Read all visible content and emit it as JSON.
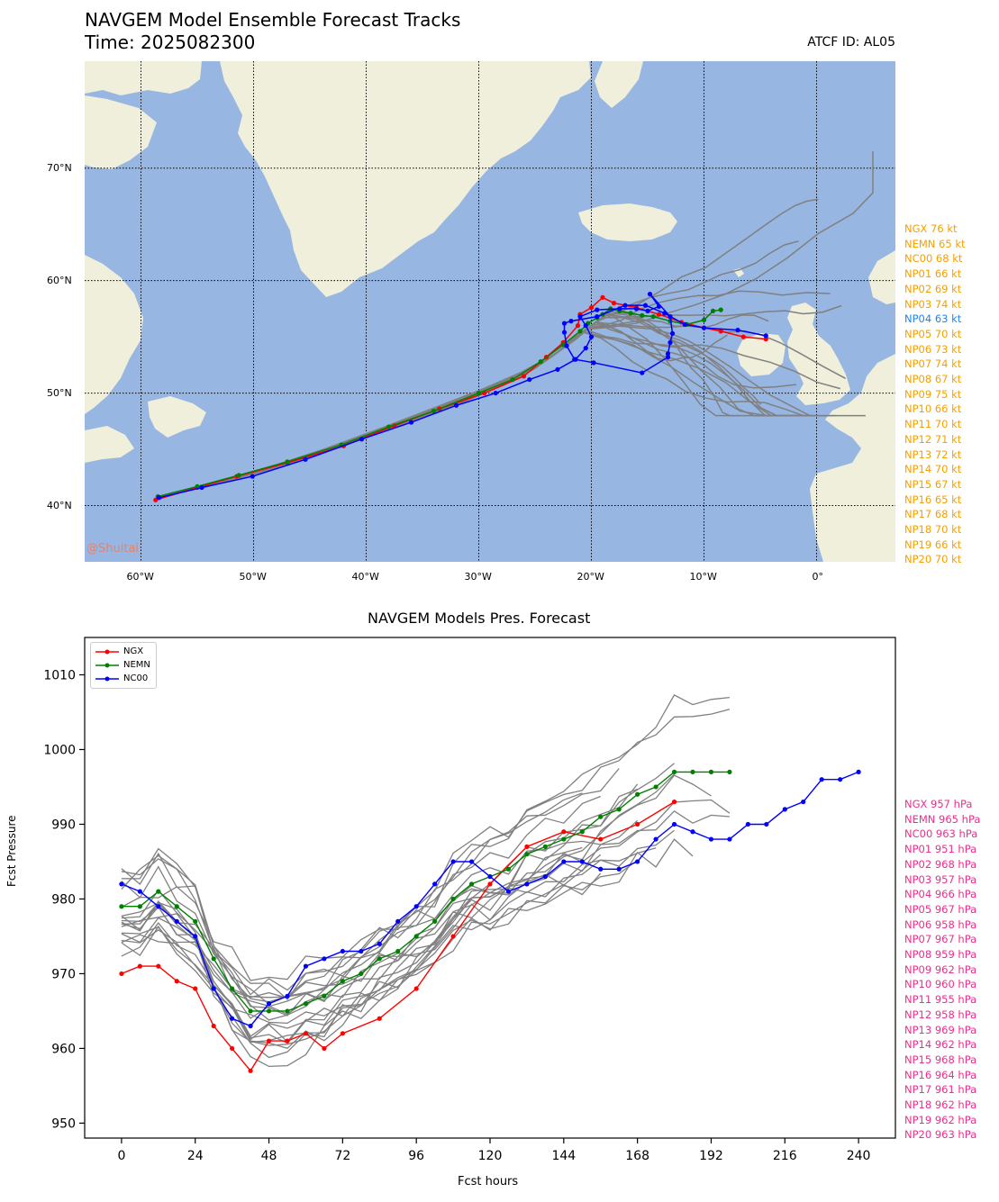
{
  "header": {
    "title": "NAVGEM Model Ensemble Forecast Tracks",
    "time_label": "Time: 2025082300",
    "atcf_label": "ATCF ID: AL05"
  },
  "map": {
    "watermark": "@Shuitai",
    "colors": {
      "ocean": "#97b6e1",
      "land": "#efefdb",
      "grid": "#000000"
    },
    "lon_range": [
      -65,
      7
    ],
    "lat_range": [
      35,
      79.5
    ],
    "lat_ticks": [
      {
        "value": 40,
        "label": "40°N"
      },
      {
        "value": 50,
        "label": "50°N"
      },
      {
        "value": 60,
        "label": "60°N"
      },
      {
        "value": 70,
        "label": "70°N"
      }
    ],
    "lon_ticks": [
      {
        "value": -60,
        "label": "60°W"
      },
      {
        "value": -50,
        "label": "50°W"
      },
      {
        "value": -40,
        "label": "40°W"
      },
      {
        "value": -30,
        "label": "30°W"
      },
      {
        "value": -20,
        "label": "20°W"
      },
      {
        "value": -10,
        "label": "10°W"
      },
      {
        "value": 0,
        "label": "0°"
      }
    ]
  },
  "wind_list": [
    "NGX 76 kt",
    "NEMN 65 kt",
    "NC00 68 kt",
    "NP01 66 kt",
    "NP02 69 kt",
    "NP03 74 kt",
    "NP04 63 kt",
    "NP05 70 kt",
    "NP06 73 kt",
    "NP07 74 kt",
    "NP08 67 kt",
    "NP09 75 kt",
    "NP10 66 kt",
    "NP11 70 kt",
    "NP12 71 kt",
    "NP13 72 kt",
    "NP14 70 kt",
    "NP15 67 kt",
    "NP16 65 kt",
    "NP17 68 kt",
    "NP18 70 kt",
    "NP19 66 kt",
    "NP20 70 kt"
  ],
  "pressure_list": [
    "NGX 957 hPa",
    "NEMN 965 hPa",
    "NC00 963 hPa",
    "NP01 951 hPa",
    "NP02 968 hPa",
    "NP03 957 hPa",
    "NP04 966 hPa",
    "NP05 967 hPa",
    "NP06 958 hPa",
    "NP07 967 hPa",
    "NP08 959 hPa",
    "NP09 962 hPa",
    "NP10 960 hPa",
    "NP11 955 hPa",
    "NP12 958 hPa",
    "NP13 969 hPa",
    "NP14 962 hPa",
    "NP15 968 hPa",
    "NP16 964 hPa",
    "NP17 961 hPa",
    "NP18 962 hPa",
    "NP19 962 hPa",
    "NP20 963 hPa"
  ],
  "chart_data": [
    {
      "type": "line",
      "title": "NAVGEM Model Ensemble Forecast Tracks",
      "xlabel": "",
      "ylabel": "",
      "xlim": [
        -65,
        7
      ],
      "ylim": [
        35,
        79.5
      ],
      "series": [
        {
          "name": "NGX",
          "color": "#ff0000",
          "points": [
            [
              -58.7,
              40.5
            ],
            [
              -55,
              41.6
            ],
            [
              -51.5,
              42.6
            ],
            [
              -47,
              43.8
            ],
            [
              -42,
              45.3
            ],
            [
              -37.5,
              47.1
            ],
            [
              -33.5,
              48.6
            ],
            [
              -29.5,
              50
            ],
            [
              -26,
              51.5
            ],
            [
              -24,
              53.2
            ],
            [
              -22.5,
              54.5
            ],
            [
              -21.2,
              56
            ],
            [
              -21,
              57
            ],
            [
              -20,
              57.6
            ],
            [
              -19,
              58.5
            ],
            [
              -18,
              58
            ],
            [
              -16,
              57.6
            ],
            [
              -14,
              57
            ],
            [
              -12,
              56.3
            ],
            [
              -10,
              55.8
            ],
            [
              -8.5,
              55.5
            ],
            [
              -6.5,
              55
            ],
            [
              -4.5,
              54.8
            ]
          ]
        },
        {
          "name": "NEMN",
          "color": "#008000",
          "points": [
            [
              -58.5,
              40.8
            ],
            [
              -55,
              41.7
            ],
            [
              -51.3,
              42.7
            ],
            [
              -47,
              43.9
            ],
            [
              -42.2,
              45.4
            ],
            [
              -38,
              47
            ],
            [
              -34,
              48.4
            ],
            [
              -30,
              50
            ],
            [
              -27,
              51.2
            ],
            [
              -24.5,
              52.8
            ],
            [
              -22.5,
              54.3
            ],
            [
              -21,
              55.5
            ],
            [
              -20.3,
              56.2
            ],
            [
              -19.5,
              56.7
            ],
            [
              -19,
              57
            ],
            [
              -18.3,
              57.5
            ],
            [
              -17.5,
              57.3
            ],
            [
              -16.5,
              57.1
            ],
            [
              -15.5,
              56.9
            ],
            [
              -14.5,
              56.8
            ],
            [
              -13,
              56.4
            ],
            [
              -11.5,
              56.1
            ],
            [
              -10,
              56.5
            ],
            [
              -9.2,
              57.3
            ],
            [
              -8.5,
              57.4
            ]
          ]
        },
        {
          "name": "NC00",
          "color": "#0000ff",
          "points": [
            [
              -58.4,
              40.7
            ],
            [
              -54.6,
              41.6
            ],
            [
              -50.1,
              42.6
            ],
            [
              -45.4,
              44.1
            ],
            [
              -40.4,
              45.9
            ],
            [
              -36,
              47.4
            ],
            [
              -32,
              48.9
            ],
            [
              -28.5,
              50
            ],
            [
              -25.5,
              51.2
            ],
            [
              -23,
              52.1
            ],
            [
              -21.4,
              53
            ],
            [
              -20.5,
              54
            ],
            [
              -20,
              55
            ],
            [
              -20.5,
              56
            ],
            [
              -21,
              56.8
            ],
            [
              -19.5,
              57.4
            ],
            [
              -17.5,
              57.5
            ],
            [
              -16,
              57.5
            ],
            [
              -15,
              57.3
            ],
            [
              -14,
              57.7
            ],
            [
              -14.8,
              58.8
            ],
            [
              -13,
              56.8
            ],
            [
              -12.8,
              55.3
            ],
            [
              -13,
              54.5
            ],
            [
              -13.2,
              53.5
            ],
            [
              -13.2,
              53.2
            ],
            [
              -15.5,
              51.8
            ],
            [
              -19.8,
              52.7
            ],
            [
              -21.5,
              53
            ],
            [
              -22.2,
              54.2
            ],
            [
              -22.4,
              55.4
            ],
            [
              -22.4,
              56.2
            ],
            [
              -21.8,
              56.4
            ],
            [
              -19.5,
              56.8
            ],
            [
              -17,
              57.8
            ],
            [
              -15.2,
              57.8
            ],
            [
              -13.5,
              57.1
            ],
            [
              -11.7,
              56.1
            ],
            [
              -10,
              55.8
            ],
            [
              -7,
              55.6
            ],
            [
              -4.5,
              55.1
            ]
          ]
        }
      ]
    },
    {
      "type": "line",
      "title": "NAVGEM Models Pres. Forecast",
      "xlabel": "Fcst hours",
      "ylabel": "Fcst Pressure",
      "xlim": [
        -12,
        252
      ],
      "ylim": [
        948,
        1015
      ],
      "xticks": [
        0,
        24,
        48,
        72,
        96,
        120,
        144,
        168,
        192,
        216,
        240
      ],
      "yticks": [
        950,
        960,
        970,
        980,
        990,
        1000,
        1010
      ],
      "legend_position": "upper-left",
      "series": [
        {
          "name": "NGX",
          "color": "#ff0000",
          "x": [
            0,
            6,
            12,
            18,
            24,
            30,
            36,
            42,
            48,
            54,
            60,
            66,
            72,
            84,
            96,
            108,
            120,
            132,
            144,
            156,
            168,
            180
          ],
          "values": [
            970,
            971,
            971,
            969,
            968,
            963,
            960,
            957,
            961,
            961,
            962,
            960,
            962,
            964,
            968,
            975,
            982,
            987,
            989,
            988,
            990,
            993
          ]
        },
        {
          "name": "NEMN",
          "color": "#008000",
          "x": [
            0,
            6,
            12,
            18,
            24,
            30,
            36,
            42,
            48,
            54,
            60,
            66,
            72,
            78,
            84,
            90,
            96,
            102,
            108,
            114,
            120,
            126,
            132,
            138,
            144,
            150,
            156,
            162,
            168,
            174,
            180,
            186,
            192,
            198
          ],
          "values": [
            979,
            979,
            981,
            979,
            977,
            972,
            968,
            965,
            965,
            965,
            966,
            967,
            969,
            970,
            972,
            973,
            975,
            977,
            980,
            982,
            983,
            984,
            986,
            987,
            988,
            989,
            991,
            992,
            994,
            995,
            997,
            997,
            997,
            997
          ]
        },
        {
          "name": "NC00",
          "color": "#0000ff",
          "x": [
            0,
            6,
            12,
            18,
            24,
            30,
            36,
            42,
            48,
            54,
            60,
            66,
            72,
            78,
            84,
            90,
            96,
            102,
            108,
            114,
            120,
            126,
            132,
            138,
            144,
            150,
            156,
            162,
            168,
            174,
            180,
            186,
            192,
            198,
            204,
            210,
            216,
            222,
            228,
            234,
            240
          ],
          "values": [
            982,
            981,
            979,
            977,
            975,
            968,
            964,
            963,
            966,
            967,
            971,
            972,
            973,
            973,
            974,
            977,
            979,
            982,
            985,
            985,
            983,
            981,
            982,
            983,
            985,
            985,
            984,
            984,
            985,
            988,
            990,
            989,
            988,
            988,
            990,
            990,
            992,
            993,
            996,
            996,
            997
          ]
        }
      ]
    }
  ]
}
